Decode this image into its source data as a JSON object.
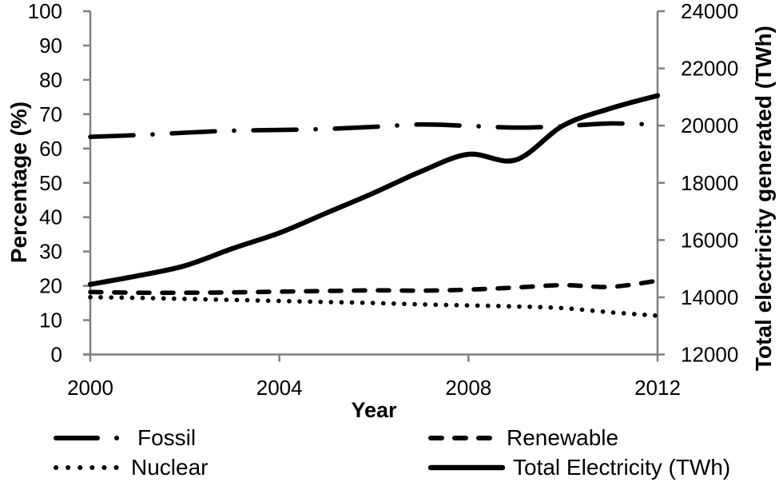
{
  "chart_data": {
    "type": "line",
    "title": "",
    "xlabel": "Year",
    "x": [
      2000,
      2001,
      2002,
      2003,
      2004,
      2005,
      2006,
      2007,
      2008,
      2009,
      2010,
      2011,
      2012
    ],
    "x_ticks": [
      2000,
      2004,
      2008,
      2012
    ],
    "left_axis": {
      "label": "Percentage (%)",
      "min": 0,
      "max": 100,
      "ticks": [
        0,
        10,
        20,
        30,
        40,
        50,
        60,
        70,
        80,
        90,
        100
      ]
    },
    "right_axis": {
      "label": "Total electricity generated (TWh)",
      "min": 12000,
      "max": 24000,
      "ticks": [
        12000,
        14000,
        16000,
        18000,
        20000,
        22000,
        24000
      ]
    },
    "series": [
      {
        "name": "Fossil",
        "axis": "left",
        "style": "dash-dot",
        "values": [
          63.4,
          63.9,
          64.6,
          65.2,
          65.4,
          65.7,
          66.3,
          67.0,
          66.6,
          66.1,
          66.5,
          67.3,
          66.9
        ]
      },
      {
        "name": "Renewable",
        "axis": "left",
        "style": "dashed",
        "values": [
          18.2,
          18.0,
          18.0,
          18.1,
          18.3,
          18.5,
          18.7,
          18.6,
          18.9,
          19.5,
          20.2,
          19.7,
          21.5
        ]
      },
      {
        "name": "Nuclear",
        "axis": "left",
        "style": "dotted",
        "values": [
          16.7,
          16.5,
          16.2,
          15.9,
          15.6,
          15.3,
          15.0,
          14.6,
          14.3,
          14.0,
          13.5,
          12.3,
          11.3
        ]
      },
      {
        "name": "Total Electricity (TWh)",
        "axis": "right",
        "style": "solid",
        "values": [
          14450,
          14750,
          15100,
          15700,
          16250,
          16950,
          17650,
          18400,
          19000,
          18800,
          20000,
          20600,
          21050
        ]
      }
    ],
    "grid": "off",
    "legend_position": "bottom",
    "colors": {
      "line": "#000000",
      "axis": "#7f7f7f",
      "text": "#000000"
    }
  }
}
